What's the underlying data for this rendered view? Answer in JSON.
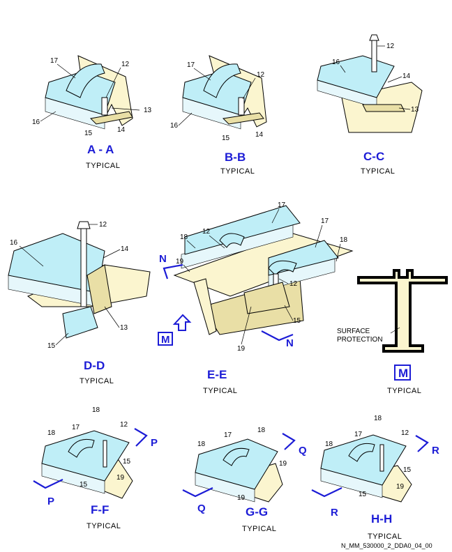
{
  "sections": [
    {
      "id": "AA",
      "label": "A - A",
      "note": "TYPICAL",
      "callouts": [
        "17",
        "12",
        "13",
        "16",
        "15",
        "14"
      ]
    },
    {
      "id": "BB",
      "label": "B-B",
      "note": "TYPICAL",
      "callouts": [
        "17",
        "12",
        "16",
        "15",
        "14"
      ]
    },
    {
      "id": "CC",
      "label": "C-C",
      "note": "TYPICAL",
      "callouts": [
        "12",
        "16",
        "14",
        "13"
      ]
    },
    {
      "id": "DD",
      "label": "D-D",
      "note": "TYPICAL",
      "callouts": [
        "12",
        "16",
        "14",
        "13",
        "15"
      ]
    },
    {
      "id": "EE",
      "label": "E-E",
      "note": "TYPICAL",
      "callouts": [
        "17",
        "17",
        "18",
        "18",
        "12",
        "12",
        "19",
        "15",
        "19"
      ]
    },
    {
      "id": "M",
      "label": "M",
      "note": "TYPICAL",
      "text": "SURFACE\nPROTECTION"
    },
    {
      "id": "FF",
      "label": "F-F",
      "note": "TYPICAL",
      "callouts": [
        "18",
        "18",
        "17",
        "12",
        "15",
        "15",
        "19"
      ]
    },
    {
      "id": "GG",
      "label": "G-G",
      "note": "TYPICAL",
      "callouts": [
        "18",
        "18",
        "17",
        "19",
        "19"
      ]
    },
    {
      "id": "HH",
      "label": "H-H",
      "note": "TYPICAL",
      "callouts": [
        "18",
        "18",
        "17",
        "12",
        "15",
        "15",
        "19"
      ]
    }
  ],
  "view_arrows": {
    "N": "N",
    "M": "M",
    "P": "P",
    "Q": "Q",
    "R": "R"
  },
  "surface_protection": [
    "SURFACE",
    "PROTECTION"
  ],
  "doc_ref": "N_MM_530000_2_DDA0_04_00",
  "colors": {
    "panel": "#bfeef7",
    "beam": "#fbf5cf",
    "label_blue": "#1c1cd6"
  }
}
